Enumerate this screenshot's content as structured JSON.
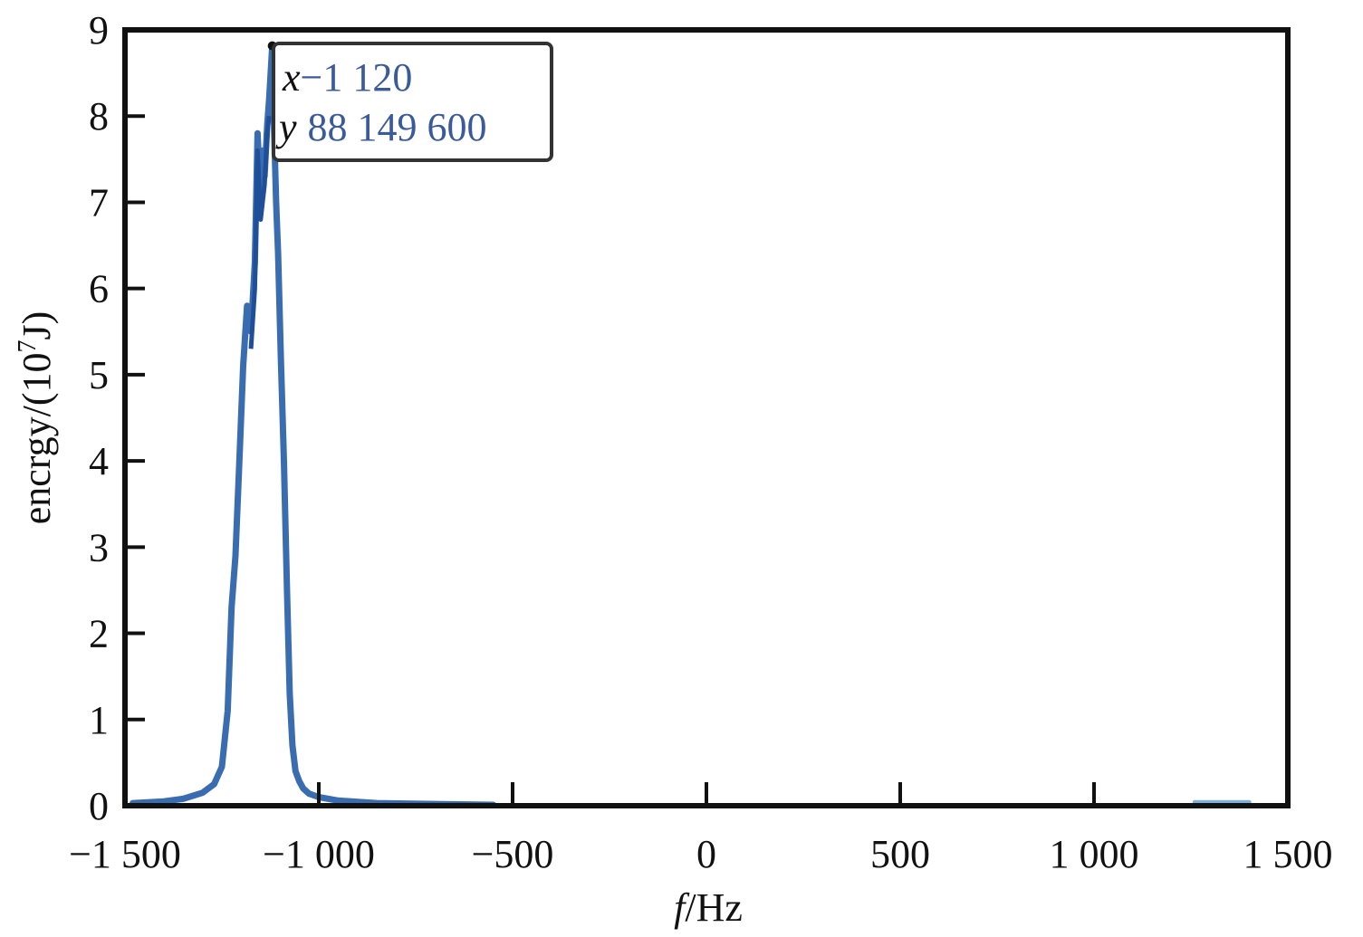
{
  "chart_data": {
    "type": "line",
    "title": "",
    "xlabel": {
      "italic": "f",
      "rest": "/Hz"
    },
    "ylabel": {
      "before": "encrgy/(10",
      "sup": "7",
      "after": "J)"
    },
    "xlim": [
      -1500,
      1500
    ],
    "ylim": [
      0,
      9
    ],
    "x_ticks": [
      -1500,
      -1000,
      -500,
      0,
      500,
      1000,
      1500
    ],
    "x_tick_labels": [
      "−1 500",
      "−1 000",
      "−500",
      "0",
      "500",
      "1 000",
      "1 500"
    ],
    "y_ticks": [
      0,
      1,
      2,
      3,
      4,
      5,
      6,
      7,
      8,
      9
    ],
    "y_tick_labels": [
      "0",
      "1",
      "2",
      "3",
      "4",
      "5",
      "6",
      "7",
      "8",
      "9"
    ],
    "grid": false,
    "legend": "none",
    "series": [
      {
        "color": "#3a6db0",
        "x": [
          -1480,
          -1400,
          -1350,
          -1300,
          -1270,
          -1250,
          -1235,
          -1225,
          -1215,
          -1205,
          -1195,
          -1185,
          -1175,
          -1165,
          -1158,
          -1150,
          -1145,
          -1140,
          -1133,
          -1128,
          -1120,
          -1115,
          -1110,
          -1105,
          -1098,
          -1090,
          -1082,
          -1075,
          -1068,
          -1060,
          -1050,
          -1040,
          -1025,
          -1000,
          -950,
          -850,
          -700,
          -550
        ],
        "y": [
          0.03,
          0.05,
          0.08,
          0.15,
          0.25,
          0.45,
          1.1,
          2.3,
          2.9,
          4.0,
          5.1,
          5.8,
          5.5,
          6.3,
          7.8,
          7.0,
          7.6,
          7.3,
          7.9,
          8.2,
          8.81,
          7.8,
          7.0,
          6.4,
          5.2,
          4.0,
          2.5,
          1.3,
          0.7,
          0.4,
          0.28,
          0.2,
          0.14,
          0.1,
          0.06,
          0.03,
          0.02,
          0.01
        ]
      },
      {
        "color": "#7fb0d8",
        "x": [
          1260,
          1400
        ],
        "y": [
          0.04,
          0.04
        ]
      }
    ],
    "annotations": [
      {
        "x": -1120,
        "y": 8.81496,
        "lines": [
          {
            "key": "x",
            "value": "−1 120"
          },
          {
            "key": "y",
            "value": "88 149 600"
          }
        ]
      }
    ]
  }
}
